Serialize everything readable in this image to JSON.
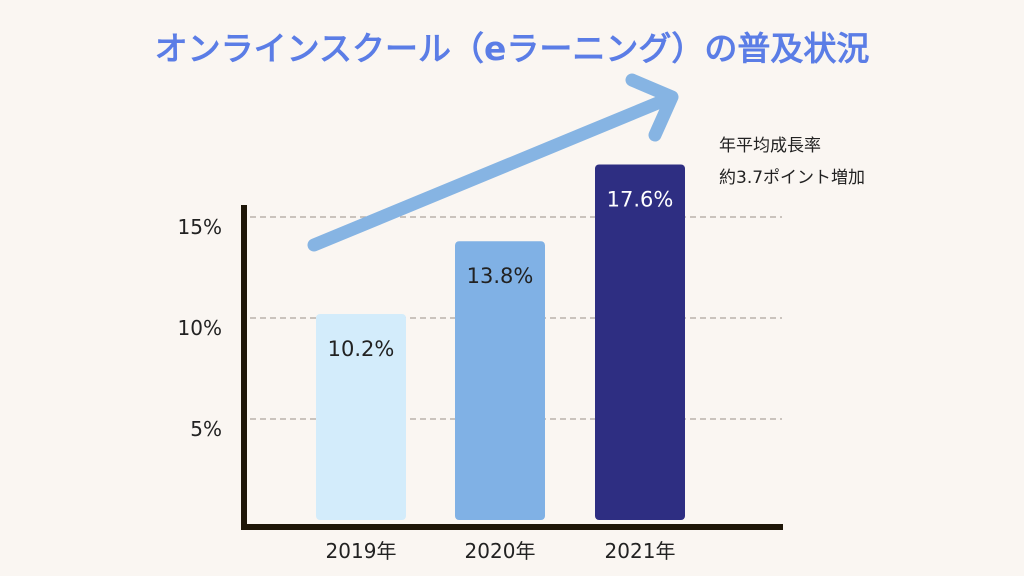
{
  "chart_data": {
    "type": "bar",
    "title": "オンラインスクール（eラーニング）の普及状況",
    "categories": [
      "2019年",
      "2020年",
      "2021年"
    ],
    "values": [
      10.2,
      13.8,
      17.6
    ],
    "value_labels": [
      "10.2%",
      "13.8%",
      "17.6%"
    ],
    "yticks": [
      {
        "value": 5,
        "label": "5%"
      },
      {
        "value": 10,
        "label": "10%"
      },
      {
        "value": 15,
        "label": "15%"
      }
    ],
    "ylim": [
      0,
      20
    ],
    "grid": "dashed horizontal at tick values",
    "bar_colors": [
      "#d3ecfb",
      "#80b1e5",
      "#2e2e82"
    ],
    "bar_label_colors": [
      "#222222",
      "#222222",
      "#ffffff"
    ],
    "annotation": {
      "lines": [
        "年平均成長率",
        "約3.7ポイント増加"
      ],
      "arrow": "upward trend arrow"
    },
    "colors": {
      "title": "#5b7de6",
      "arrow": "#86b4e3",
      "axis": "#1e1608",
      "grid": "#b9b2ab",
      "background": "#faf6f2"
    }
  }
}
